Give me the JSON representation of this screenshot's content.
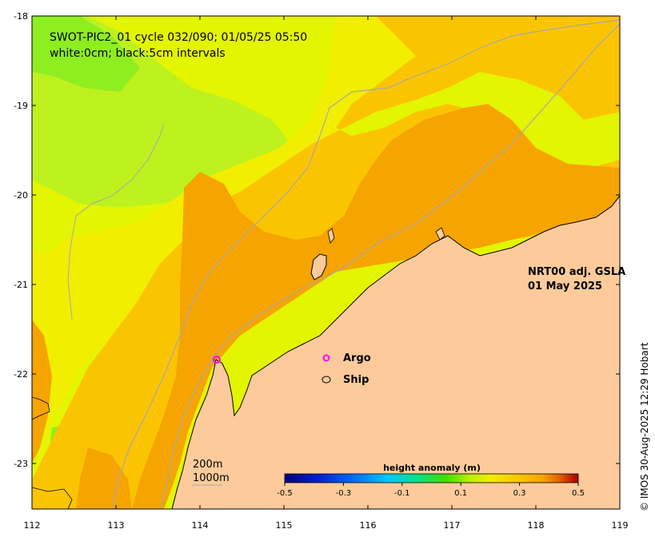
{
  "title": {
    "line1": "SWOT-PIC2_01 cycle 032/090; 01/05/25 05:50",
    "line2": "white:0cm; black:5cm intervals"
  },
  "product": {
    "name": "NRT00 adj. GSLA",
    "date": "01 May 2025"
  },
  "legend": {
    "argo": "Argo",
    "ship": "Ship",
    "argo_color": "#ff00ff",
    "ship_color": "#000000"
  },
  "contours": {
    "c200": "200m",
    "c1000": "1000m"
  },
  "axes": {
    "x_ticks": [
      "112",
      "113",
      "114",
      "115",
      "116",
      "117",
      "118",
      "119"
    ],
    "y_ticks": [
      "-18",
      "-19",
      "-20",
      "-21",
      "-22",
      "-23"
    ],
    "lon_range": [
      112,
      119
    ],
    "lat_range": [
      -23.5,
      -18
    ]
  },
  "colorbar": {
    "title": "height anomaly (m)",
    "ticks": [
      "-0.5",
      "-0.3",
      "-0.1",
      "0.1",
      "0.3",
      "0.5"
    ],
    "range": [
      -0.5,
      0.5
    ]
  },
  "credit": "© IMOS 30-Aug-2025 12:29 Hobart",
  "colors": {
    "land": "#fdcb9b",
    "anom_0_30": "#f5a400",
    "anom_0_25": "#fbc400",
    "anom_0_20": "#f2ee00",
    "anom_0_15": "#e4f500",
    "anom_0_10": "#bdf21e",
    "anom_0_05": "#8fee20",
    "coast": "#000000",
    "bathymetry": "#a8a8a8"
  }
}
